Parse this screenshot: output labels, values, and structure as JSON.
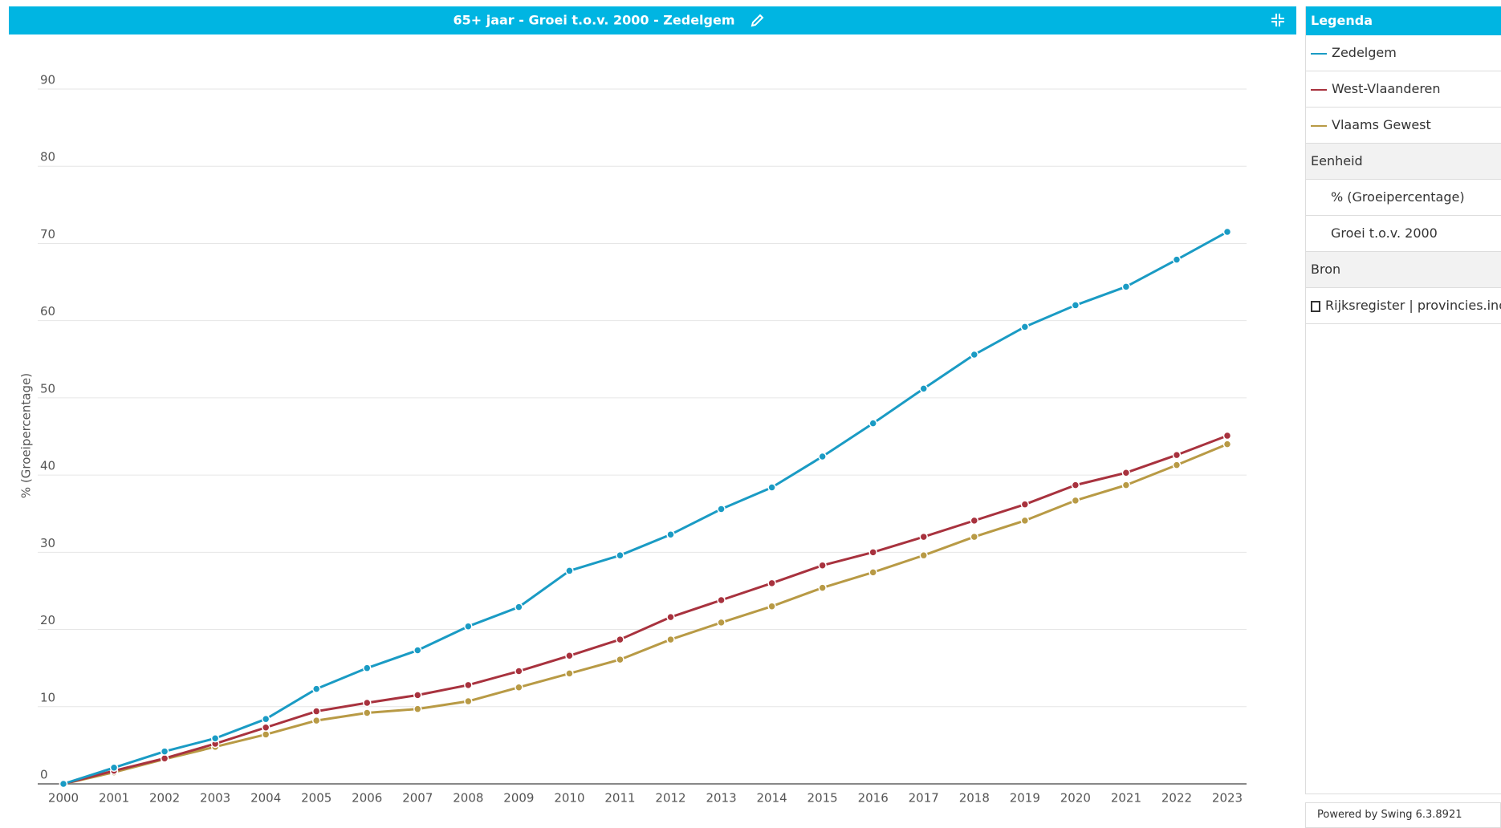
{
  "chart_data": {
    "type": "line",
    "title": "65+ jaar - Groei t.o.v. 2000 - Zedelgem",
    "y_label": "% (Groeipercentage)",
    "categories": [
      "2000",
      "2001",
      "2002",
      "2003",
      "2004",
      "2005",
      "2006",
      "2007",
      "2008",
      "2009",
      "2010",
      "2011",
      "2012",
      "2013",
      "2014",
      "2015",
      "2016",
      "2017",
      "2018",
      "2019",
      "2020",
      "2021",
      "2022",
      "2023"
    ],
    "series": [
      {
        "name": "Zedelgem",
        "color": "#1a9bc4",
        "values": [
          0,
          2.1,
          4.2,
          5.9,
          8.4,
          12.3,
          15.0,
          17.3,
          20.4,
          22.9,
          27.6,
          29.6,
          32.3,
          35.6,
          38.4,
          42.4,
          46.7,
          51.2,
          55.6,
          59.2,
          62.0,
          64.4,
          67.9,
          71.5
        ]
      },
      {
        "name": "West-Vlaanderen",
        "color": "#a8323e",
        "values": [
          0,
          1.7,
          3.3,
          5.2,
          7.3,
          9.4,
          10.5,
          11.5,
          12.8,
          14.6,
          16.6,
          18.7,
          21.6,
          23.8,
          26.0,
          28.3,
          30.0,
          32.0,
          34.1,
          36.2,
          38.7,
          40.3,
          42.6,
          45.1
        ]
      },
      {
        "name": "Vlaams Gewest",
        "color": "#b89a45",
        "values": [
          0,
          1.5,
          3.2,
          4.8,
          6.4,
          8.2,
          9.2,
          9.7,
          10.7,
          12.5,
          14.3,
          16.1,
          18.7,
          20.9,
          23.0,
          25.4,
          27.4,
          29.6,
          32.0,
          34.1,
          36.7,
          38.7,
          41.3,
          44.0
        ]
      }
    ],
    "ylim": [
      0,
      90
    ],
    "yticks": [
      0,
      10,
      20,
      30,
      40,
      50,
      60,
      70,
      80,
      90
    ],
    "grid": true
  },
  "panel": {
    "title": "Legenda",
    "unit_heading": "Eenheid",
    "unit_items": [
      "% (Groeipercentage)",
      "Groei t.o.v. 2000"
    ],
    "source_heading": "Bron",
    "source": "Rijksregister | provincies.incijfers.be"
  },
  "footer": "Powered by Swing 6.3.8921"
}
